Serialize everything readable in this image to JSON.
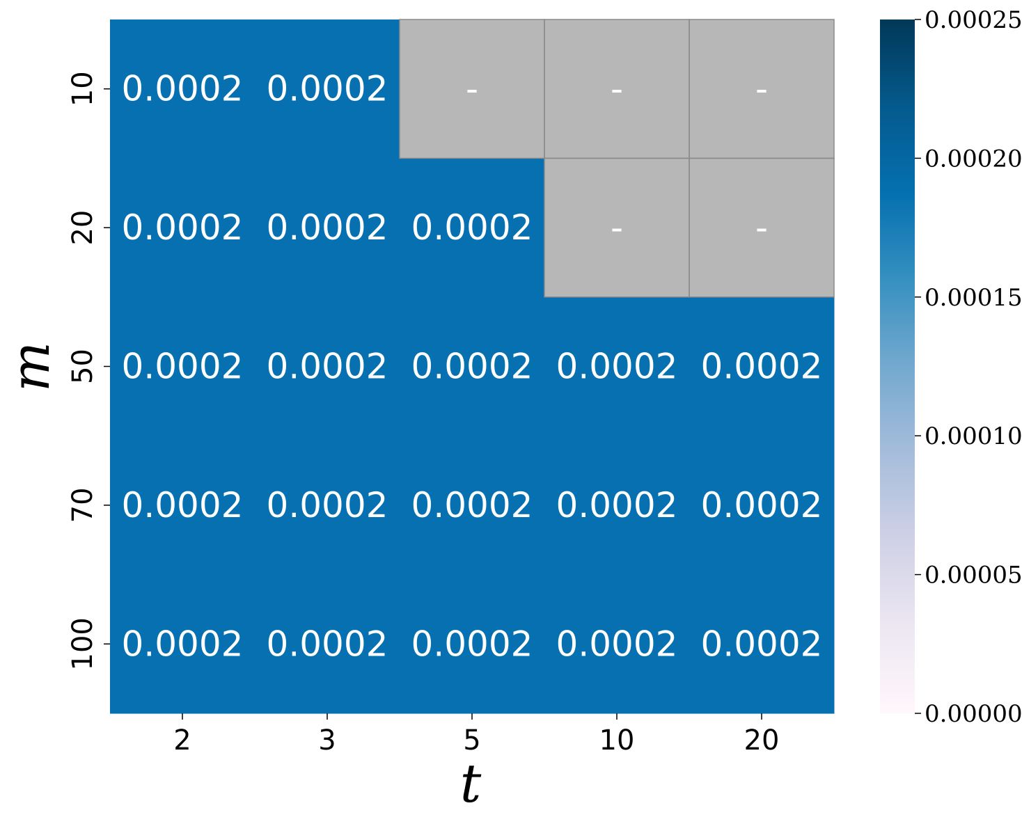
{
  "chart_data": {
    "type": "heatmap",
    "xlabel": "t",
    "ylabel": "m",
    "x_categories": [
      "2",
      "3",
      "5",
      "10",
      "20"
    ],
    "y_categories": [
      "10",
      "20",
      "50",
      "70",
      "100"
    ],
    "values": [
      [
        0.0002,
        0.0002,
        null,
        null,
        null
      ],
      [
        0.0002,
        0.0002,
        0.0002,
        null,
        null
      ],
      [
        0.0002,
        0.0002,
        0.0002,
        0.0002,
        0.0002
      ],
      [
        0.0002,
        0.0002,
        0.0002,
        0.0002,
        0.0002
      ],
      [
        0.0002,
        0.0002,
        0.0002,
        0.0002,
        0.0002
      ]
    ],
    "cell_labels": [
      [
        "0.0002",
        "0.0002",
        "-",
        "-",
        "-"
      ],
      [
        "0.0002",
        "0.0002",
        "0.0002",
        "-",
        "-"
      ],
      [
        "0.0002",
        "0.0002",
        "0.0002",
        "0.0002",
        "0.0002"
      ],
      [
        "0.0002",
        "0.0002",
        "0.0002",
        "0.0002",
        "0.0002"
      ],
      [
        "0.0002",
        "0.0002",
        "0.0002",
        "0.0002",
        "0.0002"
      ]
    ],
    "colorbar": {
      "range": [
        0,
        0.00025
      ],
      "ticks": [
        "0.00000",
        "0.00005",
        "0.00010",
        "0.00015",
        "0.00020",
        "0.00025"
      ],
      "colormap": [
        "#fff7fb",
        "#ece7f2",
        "#d0d1e6",
        "#a6bddb",
        "#74a9cf",
        "#3690c0",
        "#0570b0",
        "#045a8d",
        "#023858"
      ]
    },
    "missing_color": "#b7b7b7",
    "cell_color": "#0770b0"
  }
}
